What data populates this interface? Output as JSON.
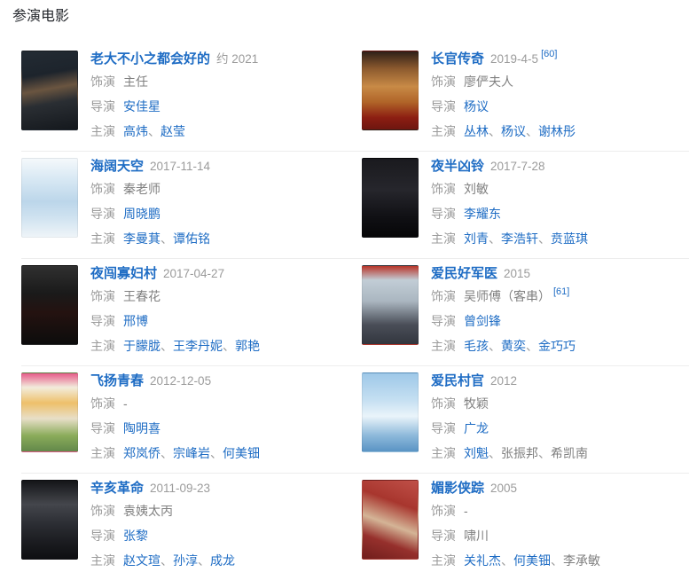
{
  "page": {
    "heading": "参演电影"
  },
  "labels": {
    "role": "饰演",
    "director": "导演",
    "starring": "主演",
    "separator": "、"
  },
  "colors": {
    "link": "#1e6cc4",
    "label": "#9b9b9b",
    "plain": "#808080",
    "date": "#9b9b9b",
    "heading": "#26292e",
    "divider": "#ededed"
  },
  "movies": [
    {
      "title": "老大不小之都会好的",
      "date": "约 2021",
      "title_ref": "",
      "role": "主任",
      "role_ref": "",
      "directors": [
        {
          "name": "安佳星",
          "link": true
        }
      ],
      "stars": [
        {
          "name": "高炜",
          "link": true
        },
        {
          "name": "赵莹",
          "link": true
        }
      ],
      "poster": "linear-gradient(170deg,#232b33 0%,#1d242c 30%,#6a5540 48%,#2a2e33 65%,#14181d 100%)"
    },
    {
      "title": "长官传奇",
      "date": "2019-4-5",
      "title_ref": "[60]",
      "role": "廖俨夫人",
      "role_ref": "",
      "directors": [
        {
          "name": "杨议",
          "link": true
        }
      ],
      "stars": [
        {
          "name": "丛林",
          "link": true
        },
        {
          "name": "杨议",
          "link": true
        },
        {
          "name": "谢林彤",
          "link": true
        }
      ],
      "poster": "linear-gradient(180deg,#2e2018 0%,#8c5a2e 22%,#c88a46 45%,#b06428 65%,#8c1e12 85%,#6e1610 100%)"
    },
    {
      "title": "海阔天空",
      "date": "2017-11-14",
      "title_ref": "",
      "role": "秦老师",
      "role_ref": "",
      "directors": [
        {
          "name": "周晓鹏",
          "link": true
        }
      ],
      "stars": [
        {
          "name": "李曼萁",
          "link": true
        },
        {
          "name": "谭佑铭",
          "link": true
        }
      ],
      "poster": "linear-gradient(180deg,#f4f8fb 0%,#d9e9f4 25%,#bcd6ea 55%,#cfe2f0 75%,#eef4f8 100%)"
    },
    {
      "title": "夜半凶铃",
      "date": "2017-7-28",
      "title_ref": "",
      "role": "刘敏",
      "role_ref": "",
      "directors": [
        {
          "name": "李耀东",
          "link": true
        }
      ],
      "stars": [
        {
          "name": "刘青",
          "link": true
        },
        {
          "name": "李浩轩",
          "link": true
        },
        {
          "name": "贲蓝琪",
          "link": true
        }
      ],
      "poster": "linear-gradient(180deg,#1a1a1e 0%,#26262c 40%,#101014 75%,#060608 100%)"
    },
    {
      "title": "夜闯寡妇村",
      "date": "2017-04-27",
      "title_ref": "",
      "role": "王春花",
      "role_ref": "",
      "directors": [
        {
          "name": "邢博",
          "link": true
        }
      ],
      "stars": [
        {
          "name": "于朦胧",
          "link": true
        },
        {
          "name": "王李丹妮",
          "link": true
        },
        {
          "name": "郭艳",
          "link": true
        }
      ],
      "poster": "linear-gradient(180deg,#303030 0%,#1a1a1a 35%,#241210 60%,#0c0c0c 100%)"
    },
    {
      "title": "爱民好军医",
      "date": "2015",
      "title_ref": "",
      "role": "吴师傅（客串）",
      "role_ref": "[61]",
      "directors": [
        {
          "name": "曾剑锋",
          "link": true
        }
      ],
      "stars": [
        {
          "name": "毛孩",
          "link": true
        },
        {
          "name": "黄奕",
          "link": true
        },
        {
          "name": "金巧巧",
          "link": true
        }
      ],
      "poster": "linear-gradient(180deg,#b8352a 0%,#c2cdd6 18%,#aab6c0 45%,#4a4e58 75%,#32363e 100%)"
    },
    {
      "title": "飞扬青春",
      "date": "2012-12-05",
      "title_ref": "",
      "role": "-",
      "role_ref": "",
      "directors": [
        {
          "name": "陶明喜",
          "link": true
        }
      ],
      "stars": [
        {
          "name": "郑岚侨",
          "link": true
        },
        {
          "name": "宗峰岩",
          "link": true
        },
        {
          "name": "何美钿",
          "link": true
        }
      ],
      "poster": "linear-gradient(180deg,#e65c8a 0%,#f2ecdc 18%,#eec06a 38%,#e8dfc8 58%,#8aab5a 80%,#62884a 100%)"
    },
    {
      "title": "爱民村官",
      "date": "2012",
      "title_ref": "",
      "role": "牧颖",
      "role_ref": "",
      "directors": [
        {
          "name": "广龙",
          "link": true
        }
      ],
      "stars": [
        {
          "name": "刘魁",
          "link": true
        },
        {
          "name": "张振邦",
          "link": false
        },
        {
          "name": "希凯南",
          "link": false
        }
      ],
      "poster": "linear-gradient(180deg,#9ec8e8 0%,#c6e0f2 35%,#eaf4fa 55%,#8cb8da 80%,#5a94c4 100%)"
    },
    {
      "title": "辛亥革命",
      "date": "2011-09-23",
      "title_ref": "",
      "role": "袁姨太丙",
      "role_ref": "",
      "directors": [
        {
          "name": "张黎",
          "link": true
        }
      ],
      "stars": [
        {
          "name": "赵文瑄",
          "link": true
        },
        {
          "name": "孙淳",
          "link": true
        },
        {
          "name": "成龙",
          "link": true
        }
      ],
      "poster": "linear-gradient(180deg,#141518 0%,#44464c 30%,#2c2e34 55%,#1a1b1f 80%,#0e0f12 100%)"
    },
    {
      "title": "媚影侠踪",
      "date": "2005",
      "title_ref": "",
      "role": "-",
      "role_ref": "",
      "directors": [
        {
          "name": "啸川",
          "link": false
        }
      ],
      "stars": [
        {
          "name": "关礼杰",
          "link": true
        },
        {
          "name": "何美钿",
          "link": true
        },
        {
          "name": "李承敏",
          "link": false
        }
      ],
      "poster": "linear-gradient(200deg,#c05048 0%,#a8362e 30%,#d4b496 55%,#96302c 75%,#701e1c 100%)"
    }
  ]
}
